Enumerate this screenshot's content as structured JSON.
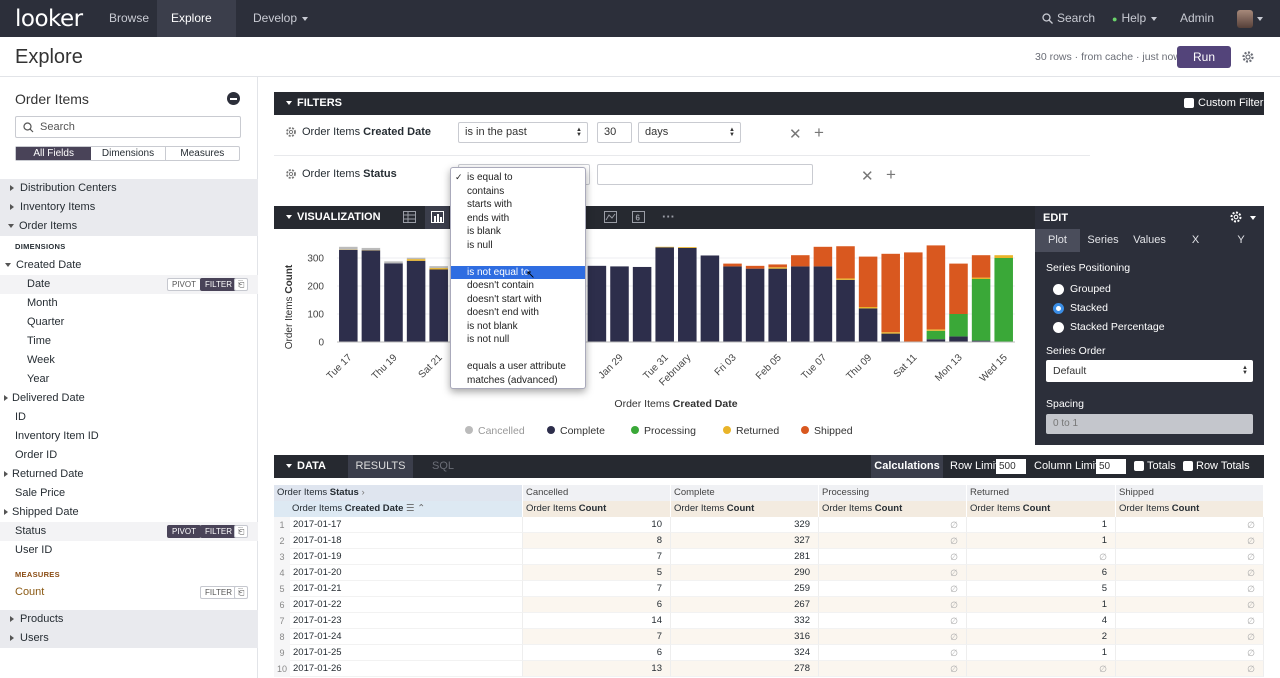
{
  "nav": {
    "logo": "looker",
    "items": [
      {
        "label": "Browse"
      },
      {
        "label": "Explore"
      },
      {
        "label": "Develop"
      }
    ],
    "search": "Search",
    "help": "Help",
    "admin": "Admin"
  },
  "header": {
    "title": "Explore",
    "status": "30 rows · from cache · just now",
    "run": "Run"
  },
  "left": {
    "view": "Order Items",
    "search_placeholder": "Search",
    "tabs": [
      "All Fields",
      "Dimensions",
      "Measures"
    ],
    "groups_top": [
      "Distribution Centers",
      "Inventory Items",
      "Order Items"
    ],
    "dimensions_header": "DIMENSIONS",
    "created": "Created Date",
    "created_children": [
      "Date",
      "Month",
      "Quarter",
      "Time",
      "Week",
      "Year"
    ],
    "fields": [
      "Delivered Date",
      "ID",
      "Inventory Item ID",
      "Order ID",
      "Returned Date",
      "Sale Price",
      "Shipped Date",
      "Status",
      "User ID"
    ],
    "measures_header": "MEASURES",
    "count": "Count",
    "groups_bottom": [
      "Products",
      "Users"
    ],
    "pivot": "PIVOT",
    "filter": "FILTER"
  },
  "filters": {
    "title": "FILTERS",
    "custom": "Custom Filter",
    "row1": {
      "label_pre": "Order Items ",
      "label_bold": "Created Date",
      "op": "is in the past",
      "num": "30",
      "unit": "days"
    },
    "row2": {
      "label_pre": "Order Items ",
      "label_bold": "Status"
    }
  },
  "dropdown": {
    "items": [
      {
        "label": "is equal to",
        "checked": true
      },
      {
        "label": "contains"
      },
      {
        "label": "starts with"
      },
      {
        "label": "ends with"
      },
      {
        "label": "is blank"
      },
      {
        "label": "is null"
      },
      {
        "label": "is not equal to",
        "highlighted": true
      },
      {
        "label": "doesn't contain"
      },
      {
        "label": "doesn't start with"
      },
      {
        "label": "doesn't end with"
      },
      {
        "label": "is not blank"
      },
      {
        "label": "is not null"
      },
      {
        "label": "equals a user attribute"
      },
      {
        "label": "matches (advanced)"
      }
    ]
  },
  "viz": {
    "title": "VISUALIZATION"
  },
  "edit": {
    "title": "EDIT",
    "tabs": [
      "Plot",
      "Series",
      "Values",
      "X",
      "Y"
    ],
    "positioning_label": "Series Positioning",
    "positions": [
      "Grouped",
      "Stacked",
      "Stacked Percentage"
    ],
    "selected_position": "Stacked",
    "order_label": "Series Order",
    "order_value": "Default",
    "spacing_label": "Spacing",
    "spacing_placeholder": "0 to 1"
  },
  "chart_data": {
    "type": "bar",
    "stacked": true,
    "ylabel_pre": "Order Items ",
    "ylabel_bold": "Count",
    "xlabel_pre": "Order Items ",
    "xlabel_bold": "Created Date",
    "ylim": [
      0,
      350
    ],
    "yticks": [
      0,
      100,
      200,
      300
    ],
    "xtick_labels": [
      "Tue 17",
      "Thu 19",
      "Sat 21",
      "Jan 29",
      "Tue 31",
      "February",
      "Fri 03",
      "Feb 05",
      "Tue 07",
      "Thu 09",
      "Sat 11",
      "Mon 13",
      "Wed 15"
    ],
    "categories": [
      "2017-01-17",
      "2017-01-18",
      "2017-01-19",
      "2017-01-20",
      "2017-01-21",
      "2017-01-22",
      "2017-01-23",
      "2017-01-24",
      "2017-01-25",
      "2017-01-26",
      "2017-01-27",
      "2017-01-28",
      "2017-01-29",
      "2017-01-30",
      "2017-01-31",
      "2017-02-01",
      "2017-02-02",
      "2017-02-03",
      "2017-02-04",
      "2017-02-05",
      "2017-02-06",
      "2017-02-07",
      "2017-02-08",
      "2017-02-09",
      "2017-02-10",
      "2017-02-11",
      "2017-02-12",
      "2017-02-13",
      "2017-02-14",
      "2017-02-15"
    ],
    "series": [
      {
        "name": "Complete",
        "color": "#2d2e4b",
        "values": [
          329,
          327,
          281,
          290,
          259,
          267,
          332,
          316,
          324,
          278,
          268,
          272,
          270,
          268,
          338,
          336,
          309,
          270,
          262,
          262,
          270,
          270,
          222,
          120,
          30,
          0,
          10,
          20,
          5,
          0
        ]
      },
      {
        "name": "Processing",
        "color": "#3aa838",
        "values": [
          0,
          0,
          0,
          0,
          0,
          0,
          0,
          0,
          0,
          0,
          0,
          0,
          0,
          0,
          0,
          0,
          0,
          0,
          0,
          0,
          0,
          0,
          0,
          0,
          0,
          0,
          30,
          80,
          220,
          300
        ]
      },
      {
        "name": "Returned",
        "color": "#e9b429",
        "values": [
          1,
          1,
          0,
          6,
          5,
          1,
          4,
          2,
          1,
          0,
          0,
          0,
          0,
          0,
          2,
          3,
          0,
          0,
          0,
          5,
          0,
          0,
          5,
          5,
          5,
          0,
          5,
          0,
          5,
          10
        ]
      },
      {
        "name": "Shipped",
        "color": "#d9581f",
        "values": [
          0,
          0,
          0,
          0,
          0,
          0,
          0,
          0,
          0,
          0,
          0,
          0,
          0,
          0,
          0,
          0,
          0,
          10,
          10,
          10,
          40,
          70,
          115,
          180,
          280,
          320,
          300,
          180,
          80,
          0
        ]
      },
      {
        "name": "Cancelled",
        "color": "#bbbbbb",
        "values": [
          10,
          8,
          7,
          5,
          7,
          6,
          14,
          7,
          6,
          13,
          0,
          0,
          0,
          0,
          0,
          0,
          0,
          0,
          0,
          0,
          0,
          0,
          0,
          0,
          0,
          0,
          0,
          0,
          0,
          0
        ]
      }
    ],
    "legend": [
      {
        "name": "Cancelled",
        "color": "#bbbbbb"
      },
      {
        "name": "Complete",
        "color": "#2d2e4b"
      },
      {
        "name": "Processing",
        "color": "#3aa838"
      },
      {
        "name": "Returned",
        "color": "#e9b429"
      },
      {
        "name": "Shipped",
        "color": "#d9581f"
      }
    ],
    "legend_position": "bottom"
  },
  "data": {
    "title": "DATA",
    "tabs": [
      "RESULTS",
      "SQL"
    ],
    "calculations": "Calculations",
    "row_limit_label": "Row Limit",
    "row_limit": "500",
    "col_limit_label": "Column Limit",
    "col_limit": "50",
    "totals": "Totals",
    "row_totals": "Row Totals",
    "pivot_header_pre": "Order Items ",
    "pivot_header_bold": "Status",
    "dim_header_pre": "Order Items ",
    "dim_header_bold": "Created Date",
    "pivot_values": [
      "Cancelled",
      "Complete",
      "Processing",
      "Returned",
      "Shipped"
    ],
    "measure_pre": "Order Items ",
    "measure_bold": "Count",
    "null_symbol": "∅",
    "rows": [
      {
        "n": "1",
        "date": "2017-01-17",
        "vals": [
          "10",
          "329",
          null,
          "1",
          null
        ]
      },
      {
        "n": "2",
        "date": "2017-01-18",
        "vals": [
          "8",
          "327",
          null,
          "1",
          null
        ]
      },
      {
        "n": "3",
        "date": "2017-01-19",
        "vals": [
          "7",
          "281",
          null,
          null,
          null
        ]
      },
      {
        "n": "4",
        "date": "2017-01-20",
        "vals": [
          "5",
          "290",
          null,
          "6",
          null
        ]
      },
      {
        "n": "5",
        "date": "2017-01-21",
        "vals": [
          "7",
          "259",
          null,
          "5",
          null
        ]
      },
      {
        "n": "6",
        "date": "2017-01-22",
        "vals": [
          "6",
          "267",
          null,
          "1",
          null
        ]
      },
      {
        "n": "7",
        "date": "2017-01-23",
        "vals": [
          "14",
          "332",
          null,
          "4",
          null
        ]
      },
      {
        "n": "8",
        "date": "2017-01-24",
        "vals": [
          "7",
          "316",
          null,
          "2",
          null
        ]
      },
      {
        "n": "9",
        "date": "2017-01-25",
        "vals": [
          "6",
          "324",
          null,
          "1",
          null
        ]
      },
      {
        "n": "10",
        "date": "2017-01-26",
        "vals": [
          "13",
          "278",
          null,
          null,
          null
        ]
      }
    ]
  }
}
